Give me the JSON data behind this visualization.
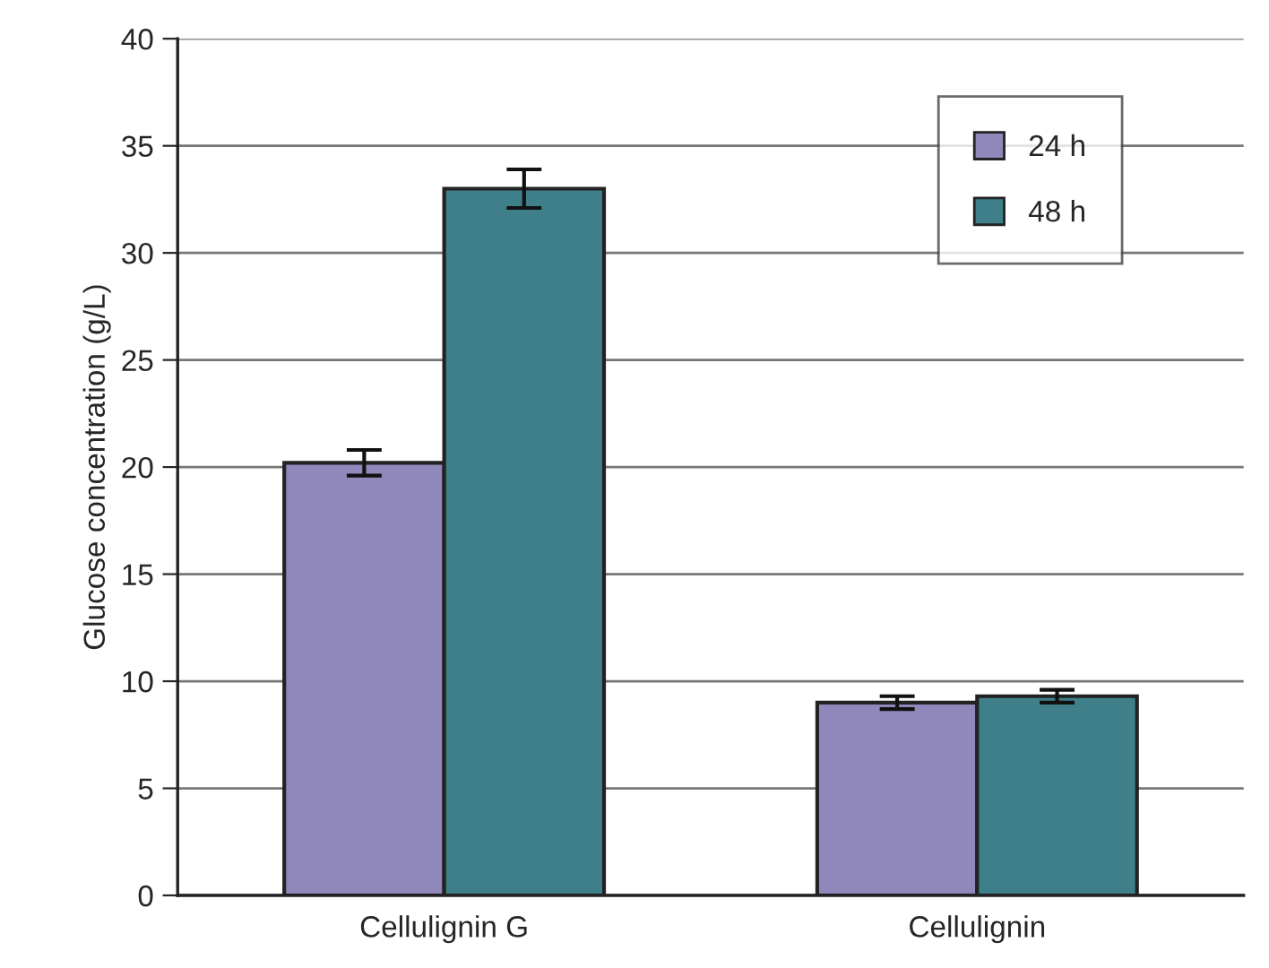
{
  "chart_data": {
    "type": "bar",
    "ylabel": "Glucose concentration (g/L)",
    "categories": [
      "Cellulignin G",
      "Cellulignin"
    ],
    "series": [
      {
        "name": "24 h",
        "color": "#9088bb",
        "values": [
          20.2,
          9.0
        ],
        "errors": [
          0.6,
          0.3
        ]
      },
      {
        "name": "48 h",
        "color": "#3f7f8a",
        "values": [
          33.0,
          9.3
        ],
        "errors": [
          0.9,
          0.3
        ]
      }
    ],
    "ylim": [
      0,
      40
    ],
    "yticks": [
      0,
      5,
      10,
      15,
      20,
      25,
      30,
      35,
      40
    ],
    "grid": "y",
    "legend": "top right"
  }
}
